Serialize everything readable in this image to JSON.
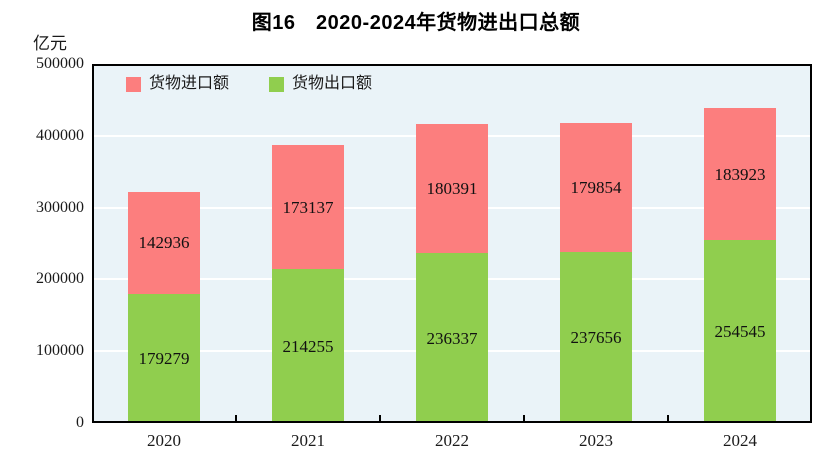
{
  "title": "图16　2020-2024年货物进出口总额",
  "unit_label": "亿元",
  "chart_data": {
    "type": "bar",
    "stacked": true,
    "title": "图16　2020-2024年货物进出口总额",
    "ylabel": "亿元",
    "xlabel": "",
    "categories": [
      "2020",
      "2021",
      "2022",
      "2023",
      "2024"
    ],
    "series": [
      {
        "name": "货物出口额",
        "color": "#90CE4E",
        "values": [
          179279,
          214255,
          236337,
          237656,
          254545
        ]
      },
      {
        "name": "货物进口额",
        "color": "#FC7E7E",
        "values": [
          142936,
          173137,
          180391,
          179854,
          183923
        ]
      }
    ],
    "legend_order": [
      "货物进口额",
      "货物出口额"
    ],
    "legend_position": "inside-top-left",
    "ylim": [
      0,
      500000
    ],
    "yticks": [
      0,
      100000,
      200000,
      300000,
      400000,
      500000
    ],
    "grid": true,
    "gridline_color": "#ffffff",
    "plot_background": "#EAF3F8",
    "axis_color": "#000000",
    "value_labels": "centered"
  }
}
